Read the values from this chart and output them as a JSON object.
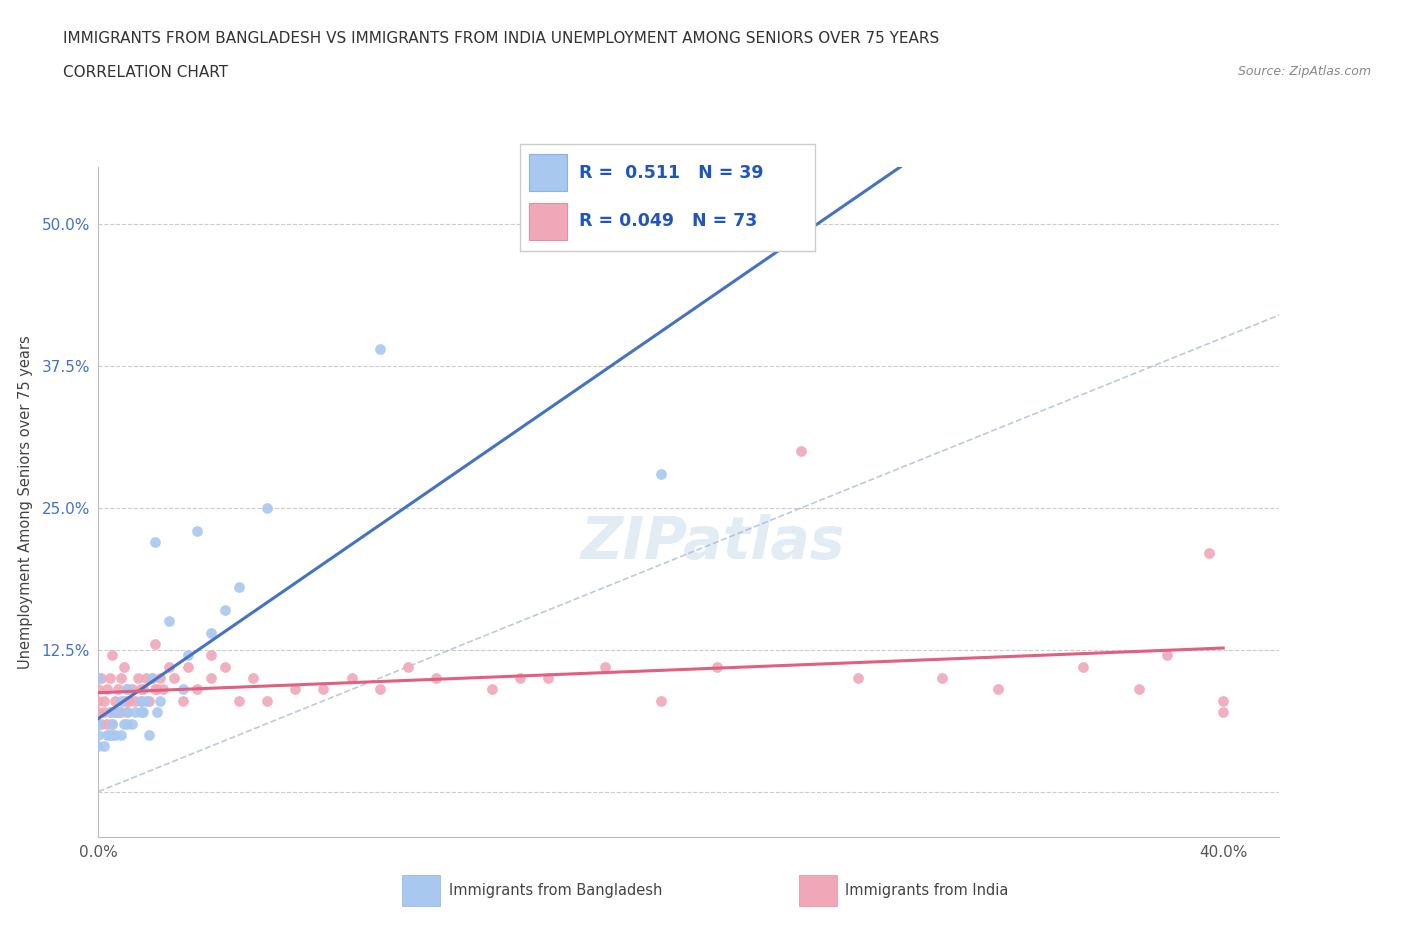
{
  "title_line1": "IMMIGRANTS FROM BANGLADESH VS IMMIGRANTS FROM INDIA UNEMPLOYMENT AMONG SENIORS OVER 75 YEARS",
  "title_line2": "CORRELATION CHART",
  "source": "Source: ZipAtlas.com",
  "ylabel": "Unemployment Among Seniors over 75 years",
  "xlim": [
    0.0,
    0.42
  ],
  "ylim": [
    -0.04,
    0.55
  ],
  "ytick_values": [
    0.0,
    0.125,
    0.25,
    0.375,
    0.5
  ],
  "ytick_labels": [
    "",
    "12.5%",
    "25.0%",
    "37.5%",
    "50.0%"
  ],
  "xtick_values": [
    0.0,
    0.1,
    0.2,
    0.3,
    0.4
  ],
  "xtick_labels": [
    "0.0%",
    "",
    "",
    "",
    "40.0%"
  ],
  "grid_color": "#cccccc",
  "legend_R1": "0.511",
  "legend_N1": "39",
  "legend_R2": "0.049",
  "legend_N2": "73",
  "color_bangladesh": "#a8c8f0",
  "color_india": "#f0a8b8",
  "regression_color_bangladesh": "#4472c4",
  "regression_color_india": "#e06080",
  "diagonal_color": "#a0b4d0",
  "background_color": "#ffffff",
  "watermark_text": "ZIPatlas",
  "scatter_bangladesh_x": [
    0.0,
    0.0,
    0.0,
    0.0,
    0.002,
    0.003,
    0.004,
    0.005,
    0.005,
    0.005,
    0.006,
    0.007,
    0.008,
    0.008,
    0.009,
    0.01,
    0.01,
    0.01,
    0.012,
    0.013,
    0.015,
    0.015,
    0.016,
    0.017,
    0.018,
    0.019,
    0.02,
    0.021,
    0.022,
    0.025,
    0.03,
    0.032,
    0.035,
    0.04,
    0.045,
    0.05,
    0.06,
    0.1,
    0.2
  ],
  "scatter_bangladesh_y": [
    0.04,
    0.05,
    0.06,
    0.1,
    0.04,
    0.05,
    0.05,
    0.05,
    0.06,
    0.07,
    0.05,
    0.07,
    0.05,
    0.08,
    0.06,
    0.06,
    0.07,
    0.09,
    0.06,
    0.07,
    0.07,
    0.08,
    0.07,
    0.08,
    0.05,
    0.1,
    0.22,
    0.07,
    0.08,
    0.15,
    0.09,
    0.12,
    0.23,
    0.14,
    0.16,
    0.18,
    0.25,
    0.39,
    0.28
  ],
  "scatter_india_x": [
    0.0,
    0.0,
    0.0,
    0.001,
    0.001,
    0.002,
    0.002,
    0.003,
    0.003,
    0.004,
    0.004,
    0.005,
    0.005,
    0.005,
    0.006,
    0.006,
    0.007,
    0.007,
    0.008,
    0.008,
    0.009,
    0.009,
    0.01,
    0.01,
    0.01,
    0.011,
    0.012,
    0.013,
    0.014,
    0.015,
    0.015,
    0.016,
    0.017,
    0.018,
    0.019,
    0.02,
    0.02,
    0.021,
    0.022,
    0.023,
    0.025,
    0.027,
    0.03,
    0.032,
    0.035,
    0.04,
    0.04,
    0.045,
    0.05,
    0.055,
    0.06,
    0.07,
    0.08,
    0.09,
    0.1,
    0.11,
    0.12,
    0.14,
    0.15,
    0.16,
    0.18,
    0.2,
    0.22,
    0.25,
    0.27,
    0.3,
    0.32,
    0.35,
    0.37,
    0.38,
    0.395,
    0.4,
    0.4
  ],
  "scatter_india_y": [
    0.07,
    0.08,
    0.09,
    0.06,
    0.1,
    0.07,
    0.08,
    0.06,
    0.09,
    0.07,
    0.1,
    0.06,
    0.07,
    0.12,
    0.07,
    0.08,
    0.07,
    0.09,
    0.07,
    0.1,
    0.08,
    0.11,
    0.07,
    0.08,
    0.09,
    0.08,
    0.09,
    0.08,
    0.1,
    0.08,
    0.09,
    0.09,
    0.1,
    0.08,
    0.1,
    0.09,
    0.13,
    0.09,
    0.1,
    0.09,
    0.11,
    0.1,
    0.08,
    0.11,
    0.09,
    0.1,
    0.12,
    0.11,
    0.08,
    0.1,
    0.08,
    0.09,
    0.09,
    0.1,
    0.09,
    0.11,
    0.1,
    0.09,
    0.1,
    0.1,
    0.11,
    0.08,
    0.11,
    0.3,
    0.1,
    0.1,
    0.09,
    0.11,
    0.09,
    0.12,
    0.21,
    0.07,
    0.08
  ]
}
